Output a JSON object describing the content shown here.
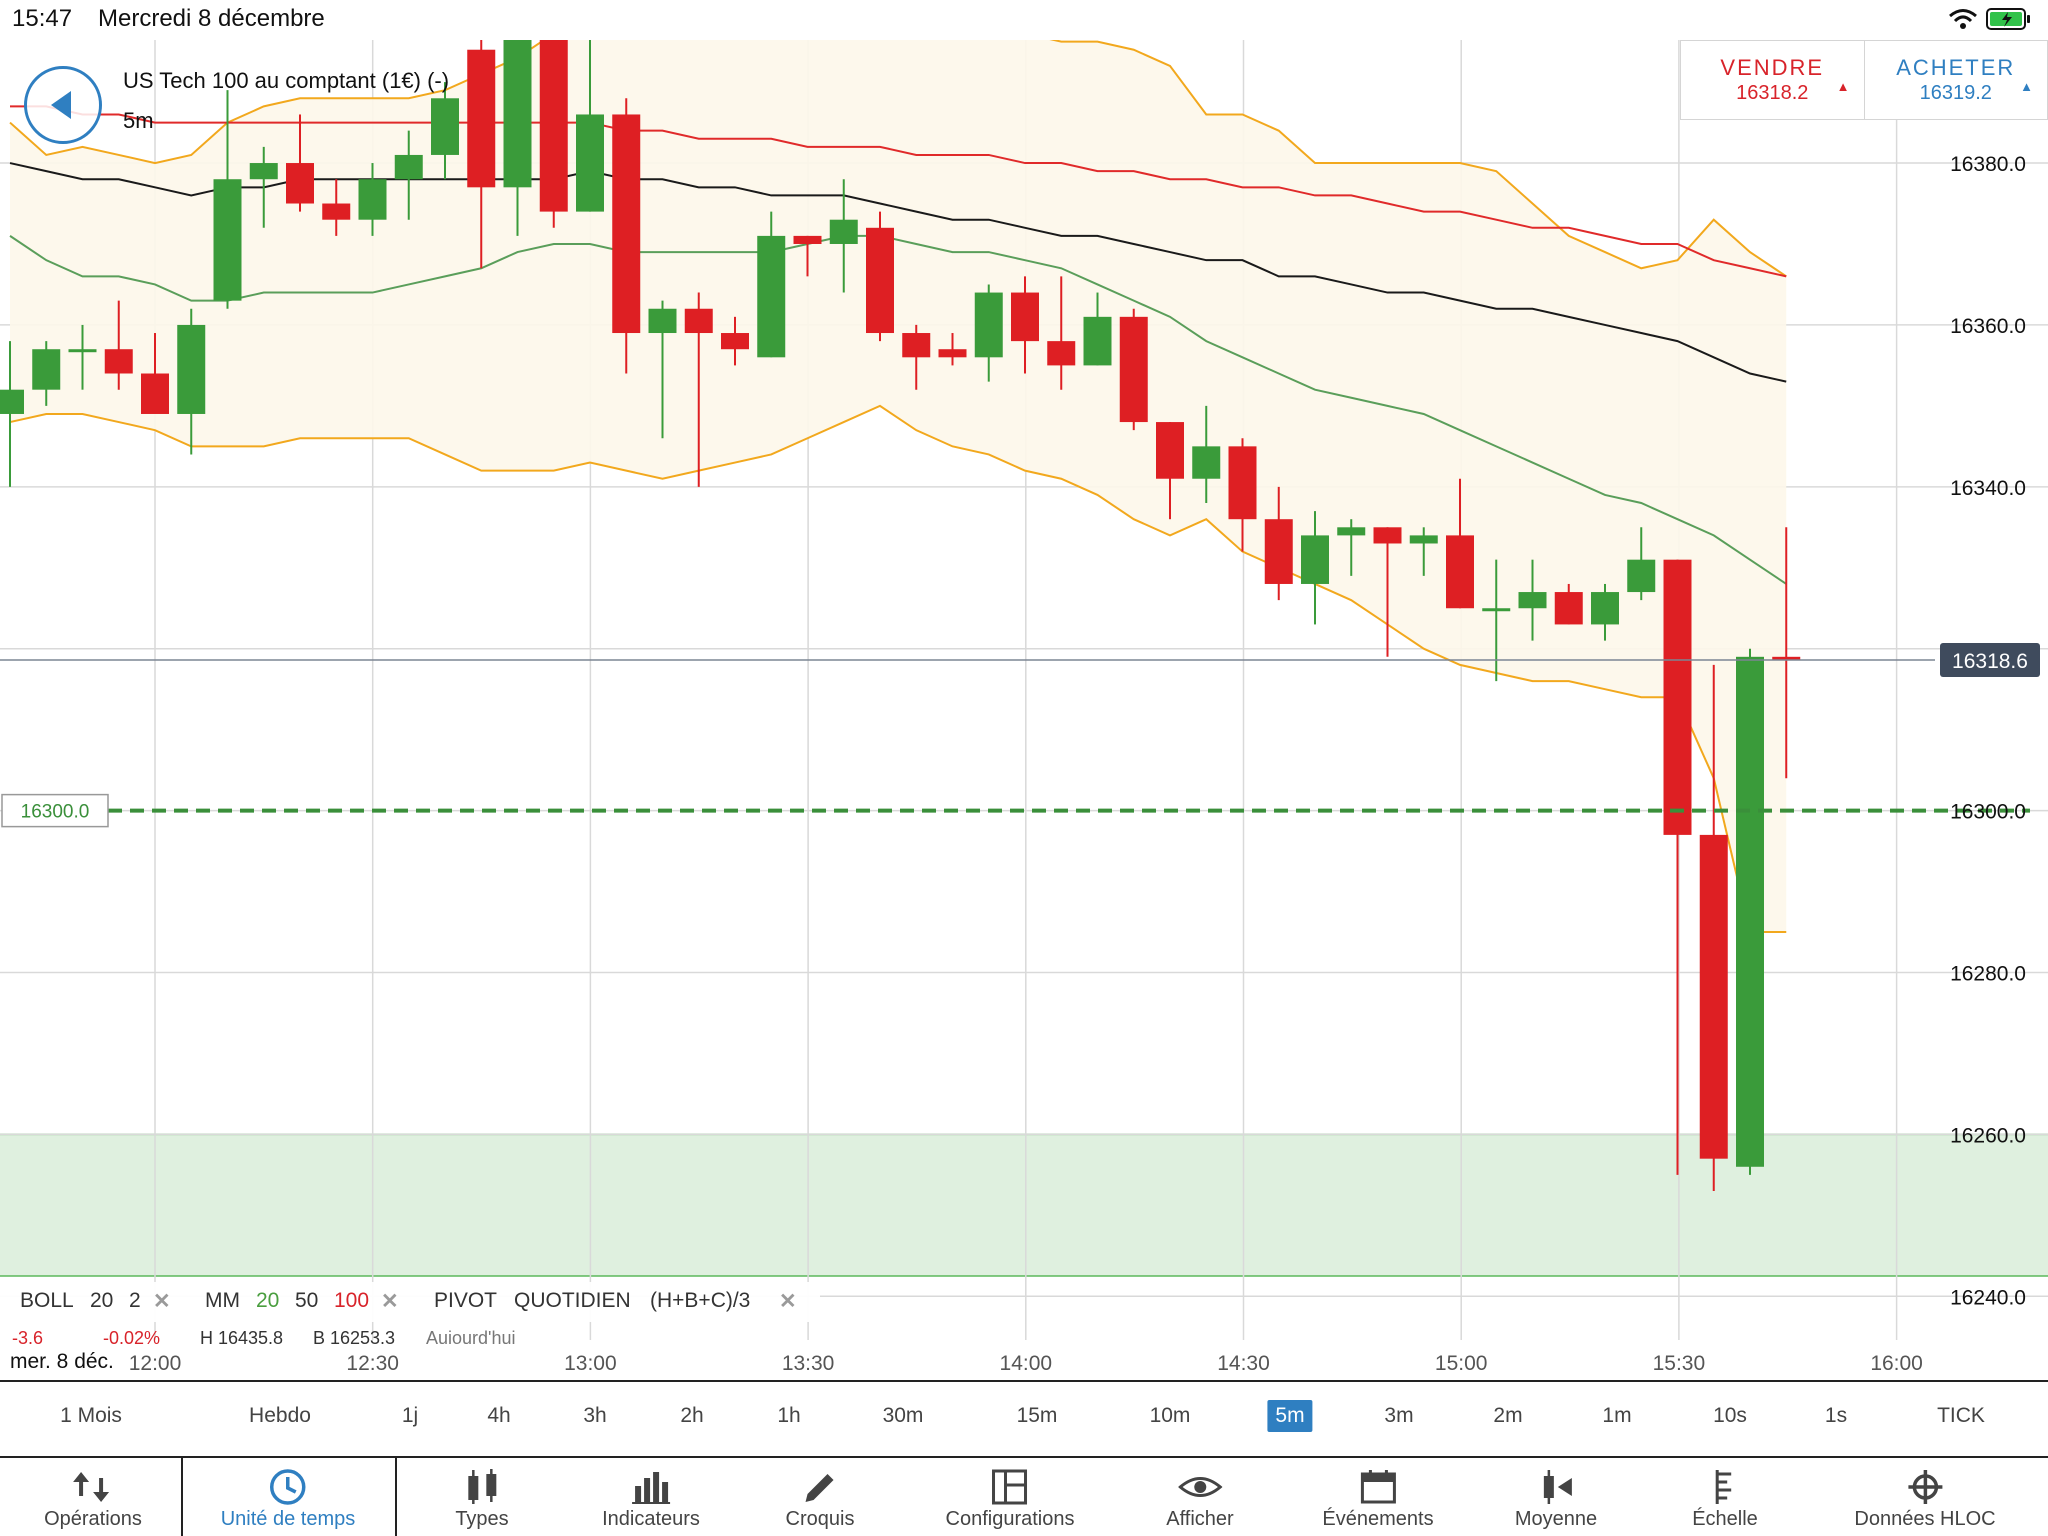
{
  "status_bar": {
    "time": "15:47",
    "date": "Mercredi 8 décembre"
  },
  "instrument": {
    "name": "US Tech 100 au comptant (1€) (-)",
    "timeframe": "5m"
  },
  "trade": {
    "sell_label": "VENDRE",
    "sell_price": "16318.2",
    "buy_label": "ACHETER",
    "buy_price": "16319.2",
    "sell_arrow": "▲",
    "buy_arrow": "▲"
  },
  "current_price_label": "16318.6",
  "alert_level_label": "16300.0",
  "legend": {
    "boll": "BOLL",
    "boll_p1": "20",
    "boll_p2": "2",
    "mm": "MM",
    "mm_p1": "20",
    "mm_p2": "50",
    "mm_p3": "100",
    "pivot": "PIVOT",
    "pivot_p1": "QUOTIDIEN",
    "pivot_p2": "(H+B+C)/3",
    "close": "✕",
    "sub_change": "-3.6",
    "sub_pct": "-0.02%",
    "sub_high": "H 16435.8",
    "sub_low": "B 16253.3",
    "sub_day": "Aujourd'hui"
  },
  "date_label": "mer. 8 déc.",
  "timeframes": [
    "1 Mois",
    "Hebdo",
    "1j",
    "4h",
    "3h",
    "2h",
    "1h",
    "30m",
    "15m",
    "10m",
    "5m",
    "3m",
    "2m",
    "1m",
    "10s",
    "1s",
    "TICK"
  ],
  "active_timeframe": "5m",
  "toolbar": [
    "Opérations",
    "Unité de temps",
    "Types",
    "Indicateurs",
    "Croquis",
    "Configurations",
    "Afficher",
    "Événements",
    "Moyenne",
    "Échelle",
    "Données HLOC"
  ],
  "active_toolbar": "Unité de temps",
  "colors": {
    "up": "#3a9b3a",
    "down": "#de1f23",
    "accent": "#2f7fc1",
    "boll_band": "#f2a81d",
    "ma20": "#5a9e5a",
    "ma50": "#1a1a1a",
    "ma100": "#e02a2a",
    "zone": "#dff0df"
  },
  "chart_data": {
    "type": "candlestick",
    "interval": "5m",
    "y_ticks": [
      16240.0,
      16260.0,
      16280.0,
      16300.0,
      16320.0,
      16340.0,
      16360.0,
      16380.0
    ],
    "y_tick_labels": [
      "16240.0",
      "16260.0",
      "16280.0",
      "16300.0",
      "",
      "16340.0",
      "16360.0",
      "16380.0"
    ],
    "x_ticks": [
      "12:00",
      "12:30",
      "13:00",
      "13:30",
      "14:00",
      "14:30",
      "15:00",
      "15:30",
      "16:00"
    ],
    "ylim": [
      16234.6,
      16395.2
    ],
    "current_price": 16318.6,
    "alert_level": 16300.0,
    "support_zone": [
      16242.5,
      16260.0
    ],
    "candles": [
      {
        "o": 16349,
        "h": 16358,
        "l": 16340,
        "c": 16352
      },
      {
        "o": 16352,
        "h": 16358,
        "l": 16350,
        "c": 16357
      },
      {
        "o": 16357,
        "h": 16360,
        "l": 16352,
        "c": 16357
      },
      {
        "o": 16357,
        "h": 16363,
        "l": 16352,
        "c": 16354
      },
      {
        "o": 16354,
        "h": 16359,
        "l": 16350,
        "c": 16349
      },
      {
        "o": 16349,
        "h": 16362,
        "l": 16344,
        "c": 16360
      },
      {
        "o": 16363,
        "h": 16389,
        "l": 16362,
        "c": 16378
      },
      {
        "o": 16378,
        "h": 16382,
        "l": 16372,
        "c": 16380
      },
      {
        "o": 16380,
        "h": 16386,
        "l": 16374,
        "c": 16375
      },
      {
        "o": 16375,
        "h": 16378,
        "l": 16371,
        "c": 16373
      },
      {
        "o": 16373,
        "h": 16380,
        "l": 16371,
        "c": 16378
      },
      {
        "o": 16378,
        "h": 16384,
        "l": 16373,
        "c": 16381
      },
      {
        "o": 16381,
        "h": 16390,
        "l": 16378,
        "c": 16388
      },
      {
        "o": 16394,
        "h": 16396,
        "l": 16367,
        "c": 16377
      },
      {
        "o": 16377,
        "h": 16396,
        "l": 16371,
        "c": 16396
      },
      {
        "o": 16396,
        "h": 16396,
        "l": 16372,
        "c": 16374
      },
      {
        "o": 16374,
        "h": 16396,
        "l": 16374,
        "c": 16386
      },
      {
        "o": 16386,
        "h": 16388,
        "l": 16354,
        "c": 16359
      },
      {
        "o": 16359,
        "h": 16363,
        "l": 16346,
        "c": 16362
      },
      {
        "o": 16362,
        "h": 16364,
        "l": 16340,
        "c": 16359
      },
      {
        "o": 16359,
        "h": 16361,
        "l": 16355,
        "c": 16357
      },
      {
        "o": 16356,
        "h": 16374,
        "l": 16356,
        "c": 16371
      },
      {
        "o": 16371,
        "h": 16371,
        "l": 16366,
        "c": 16370
      },
      {
        "o": 16370,
        "h": 16378,
        "l": 16364,
        "c": 16373
      },
      {
        "o": 16372,
        "h": 16374,
        "l": 16358,
        "c": 16359
      },
      {
        "o": 16359,
        "h": 16360,
        "l": 16352,
        "c": 16356
      },
      {
        "o": 16357,
        "h": 16359,
        "l": 16355,
        "c": 16356
      },
      {
        "o": 16356,
        "h": 16365,
        "l": 16353,
        "c": 16364
      },
      {
        "o": 16364,
        "h": 16366,
        "l": 16354,
        "c": 16358
      },
      {
        "o": 16358,
        "h": 16366,
        "l": 16352,
        "c": 16355
      },
      {
        "o": 16355,
        "h": 16364,
        "l": 16355,
        "c": 16361
      },
      {
        "o": 16361,
        "h": 16362,
        "l": 16347,
        "c": 16348
      },
      {
        "o": 16348,
        "h": 16348,
        "l": 16336,
        "c": 16341
      },
      {
        "o": 16341,
        "h": 16350,
        "l": 16338,
        "c": 16345
      },
      {
        "o": 16345,
        "h": 16346,
        "l": 16332,
        "c": 16336
      },
      {
        "o": 16336,
        "h": 16340,
        "l": 16326,
        "c": 16328
      },
      {
        "o": 16328,
        "h": 16337,
        "l": 16323,
        "c": 16334
      },
      {
        "o": 16334,
        "h": 16336,
        "l": 16329,
        "c": 16335
      },
      {
        "o": 16335,
        "h": 16335,
        "l": 16319,
        "c": 16333
      },
      {
        "o": 16333,
        "h": 16335,
        "l": 16329,
        "c": 16334
      },
      {
        "o": 16334,
        "h": 16341,
        "l": 16325,
        "c": 16325
      },
      {
        "o": 16325,
        "h": 16331,
        "l": 16316,
        "c": 16325
      },
      {
        "o": 16325,
        "h": 16331,
        "l": 16321,
        "c": 16327
      },
      {
        "o": 16327,
        "h": 16328,
        "l": 16323,
        "c": 16323
      },
      {
        "o": 16323,
        "h": 16328,
        "l": 16321,
        "c": 16327
      },
      {
        "o": 16327,
        "h": 16335,
        "l": 16326,
        "c": 16331
      },
      {
        "o": 16331,
        "h": 16331,
        "l": 16255,
        "c": 16297
      },
      {
        "o": 16297,
        "h": 16318,
        "l": 16253,
        "c": 16257
      },
      {
        "o": 16256,
        "h": 16320,
        "l": 16255,
        "c": 16319
      },
      {
        "o": 16319,
        "h": 16335,
        "l": 16304,
        "c": 16318.6
      }
    ],
    "series": [
      {
        "name": "BOLL",
        "values": [
          16385,
          16381,
          16382,
          16381,
          16380,
          16381,
          16385,
          16387,
          16388,
          16388,
          16388,
          16388,
          16389,
          16391,
          16393,
          16396,
          16397,
          16397,
          16397,
          16397,
          16397,
          16397,
          16397,
          16397,
          16397,
          16397,
          16396,
          16396,
          16396,
          16395,
          16395,
          16394,
          16392,
          16386,
          16386,
          16384,
          16380,
          16380,
          16380,
          16380,
          16380,
          16379,
          16375,
          16371,
          16369,
          16367,
          16368,
          16373,
          16369,
          16366
        ]
      },
      {
        "name": "BOLL",
        "values": [
          16348,
          16349,
          16349,
          16348,
          16347,
          16345,
          16345,
          16345,
          16346,
          16346,
          16346,
          16346,
          16344,
          16342,
          16342,
          16342,
          16343,
          16342,
          16341,
          16342,
          16343,
          16344,
          16346,
          16348,
          16350,
          16347,
          16345,
          16344,
          16342,
          16341,
          16339,
          16336,
          16334,
          16336,
          16332,
          16330,
          16328,
          16326,
          16323,
          16320,
          16318,
          16317,
          16316,
          16316,
          16315,
          16314,
          16314,
          16304,
          16285,
          16285
        ]
      },
      {
        "name": "MM",
        "values": [
          16371,
          16368,
          16366,
          16366,
          16365,
          16363,
          16363,
          16364,
          16364,
          16364,
          16364,
          16365,
          16366,
          16367,
          16369,
          16370,
          16370,
          16369,
          16369,
          16369,
          16369,
          16369,
          16370,
          16371,
          16371,
          16370,
          16369,
          16369,
          16368,
          16367,
          16365,
          16363,
          16361,
          16358,
          16356,
          16354,
          16352,
          16351,
          16350,
          16349,
          16347,
          16345,
          16343,
          16341,
          16339,
          16338,
          16336,
          16334,
          16331,
          16328
        ]
      },
      {
        "name": "MM",
        "values": [
          16380,
          16379,
          16378,
          16378,
          16377,
          16376,
          16377,
          16377,
          16378,
          16378,
          16378,
          16378,
          16378,
          16378,
          16378,
          16378,
          16379,
          16378,
          16378,
          16377,
          16377,
          16376,
          16376,
          16376,
          16375,
          16374,
          16373,
          16373,
          16372,
          16371,
          16371,
          16370,
          16369,
          16368,
          16368,
          16366,
          16366,
          16365,
          16364,
          16364,
          16363,
          16362,
          16362,
          16361,
          16360,
          16359,
          16358,
          16356,
          16354,
          16353
        ]
      },
      {
        "name": "MM",
        "values": [
          16387,
          16387,
          16386,
          16386,
          16385,
          16385,
          16385,
          16385,
          16385,
          16385,
          16385,
          16385,
          16385,
          16385,
          16385,
          16385,
          16385,
          16384,
          16384,
          16383,
          16383,
          16383,
          16382,
          16382,
          16382,
          16381,
          16381,
          16381,
          16380,
          16380,
          16379,
          16379,
          16378,
          16378,
          16377,
          16377,
          16376,
          16376,
          16375,
          16374,
          16374,
          16373,
          16372,
          16372,
          16371,
          16370,
          16370,
          16368,
          16367,
          16366
        ]
      }
    ],
    "legend": [
      "BOLL 20 2",
      "MM 20 50 100",
      "PIVOT QUOTIDIEN (H+B+C)/3"
    ]
  }
}
